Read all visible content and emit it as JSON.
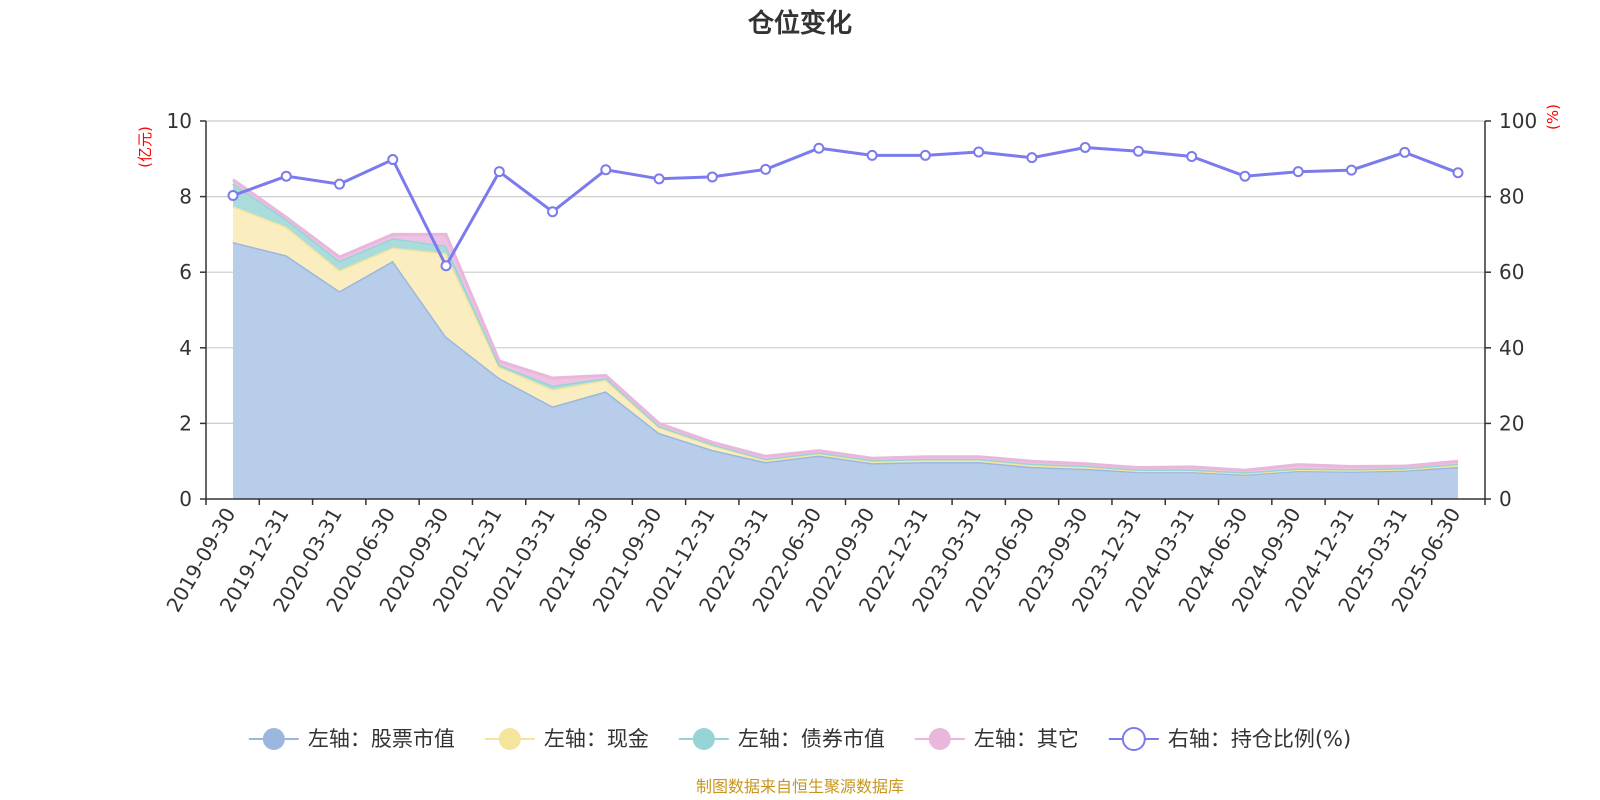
{
  "chart_data": {
    "type": "area",
    "title": "仓位变化",
    "categories": [
      "2019-09-30",
      "2019-12-31",
      "2020-03-31",
      "2020-06-30",
      "2020-09-30",
      "2020-12-31",
      "2021-03-31",
      "2021-06-30",
      "2021-09-30",
      "2021-12-31",
      "2022-03-31",
      "2022-06-30",
      "2022-09-30",
      "2022-12-31",
      "2023-03-31",
      "2023-06-30",
      "2023-09-30",
      "2023-12-31",
      "2024-03-31",
      "2024-06-30",
      "2024-09-30",
      "2024-12-31",
      "2025-03-31",
      "2025-06-30"
    ],
    "left_axis": {
      "unit": "(亿元)",
      "ylim": [
        0,
        10
      ],
      "ticks": [
        "0",
        "2",
        "4",
        "6",
        "8",
        "10"
      ]
    },
    "right_axis": {
      "unit": "(%)",
      "ylim": [
        0,
        100
      ],
      "ticks": [
        "0",
        "20",
        "40",
        "60",
        "80",
        "100"
      ]
    },
    "grid": true,
    "legend_position": "bottom",
    "series": [
      {
        "name": "左轴：股票市值",
        "axis": "left",
        "stacked": true,
        "color": "#9bb7e0",
        "fill": "#b8cdea",
        "values": [
          6.8,
          6.45,
          5.5,
          6.3,
          4.3,
          3.2,
          2.45,
          2.85,
          1.75,
          1.3,
          0.98,
          1.15,
          0.95,
          0.98,
          0.98,
          0.85,
          0.8,
          0.72,
          0.72,
          0.65,
          0.75,
          0.73,
          0.76,
          0.85
        ]
      },
      {
        "name": "左轴：现金",
        "axis": "left",
        "stacked": true,
        "color": "#f5e49c",
        "fill": "#faedc0",
        "values": [
          0.95,
          0.75,
          0.55,
          0.35,
          2.2,
          0.3,
          0.45,
          0.3,
          0.15,
          0.12,
          0.05,
          0.05,
          0.05,
          0.05,
          0.05,
          0.05,
          0.05,
          0.03,
          0.03,
          0.03,
          0.03,
          0.03,
          0.03,
          0.05
        ]
      },
      {
        "name": "左轴：债券市值",
        "axis": "left",
        "stacked": true,
        "color": "#96d4d6",
        "fill": "#aadcdc",
        "values": [
          0.6,
          0.2,
          0.25,
          0.25,
          0.2,
          0.05,
          0.1,
          0.05,
          0.03,
          0.03,
          0.03,
          0.03,
          0.03,
          0.03,
          0.03,
          0.03,
          0.03,
          0.03,
          0.03,
          0.03,
          0.03,
          0.03,
          0.03,
          0.03
        ]
      },
      {
        "name": "左轴：其它",
        "axis": "left",
        "stacked": true,
        "color": "#e9b7dc",
        "fill": "#eec2e2",
        "values": [
          0.1,
          0.05,
          0.1,
          0.1,
          0.3,
          0.1,
          0.2,
          0.07,
          0.07,
          0.05,
          0.07,
          0.05,
          0.05,
          0.06,
          0.06,
          0.07,
          0.05,
          0.05,
          0.07,
          0.05,
          0.1,
          0.07,
          0.05,
          0.07
        ]
      },
      {
        "name": "右轴：持仓比例(%)",
        "axis": "right",
        "stacked": false,
        "color": "#7b7bed",
        "values": [
          80.3,
          85.4,
          83.3,
          89.8,
          61.7,
          86.6,
          76.0,
          87.1,
          84.7,
          85.2,
          87.2,
          92.8,
          90.9,
          90.9,
          91.8,
          90.3,
          93.0,
          92.0,
          90.6,
          85.4,
          86.6,
          87.0,
          91.7,
          86.3
        ]
      }
    ]
  },
  "source_note": "制图数据来自恒生聚源数据库"
}
